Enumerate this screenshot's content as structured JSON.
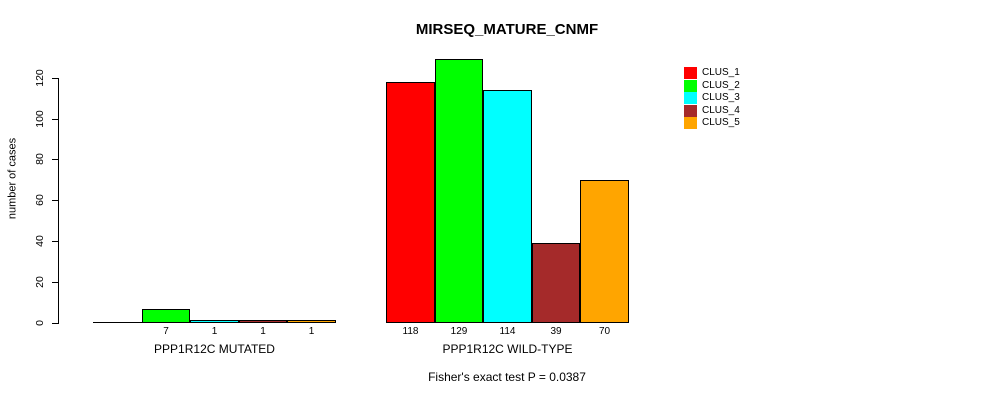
{
  "chart_data": {
    "type": "bar",
    "title": "MIRSEQ_MATURE_CNMF",
    "subtitle": "Fisher's exact test P = 0.0387",
    "ylabel": "number of cases",
    "xlabel": "",
    "ylim": [
      0,
      130
    ],
    "yticks": [
      0,
      20,
      40,
      60,
      80,
      100,
      120
    ],
    "grid": false,
    "legend_position": "top-right",
    "categories": [
      "PPP1R12C MUTATED",
      "PPP1R12C WILD-TYPE"
    ],
    "series": [
      {
        "name": "CLUS_1",
        "color": "#FF0000",
        "values": [
          0,
          118
        ]
      },
      {
        "name": "CLUS_2",
        "color": "#00FF00",
        "values": [
          7,
          129
        ]
      },
      {
        "name": "CLUS_3",
        "color": "#00FFFF",
        "values": [
          1,
          114
        ]
      },
      {
        "name": "CLUS_4",
        "color": "#A52A2A",
        "values": [
          1,
          39
        ]
      },
      {
        "name": "CLUS_5",
        "color": "#FFA500",
        "values": [
          1,
          70
        ]
      }
    ],
    "bar_value_labels": [
      "7",
      "1",
      "1",
      "1",
      "118",
      "129",
      "114",
      "39",
      "70"
    ],
    "bar_value_labels_note": "zero-value bars have no label",
    "axis_color": "#000000",
    "bar_border_color": "#000000"
  }
}
